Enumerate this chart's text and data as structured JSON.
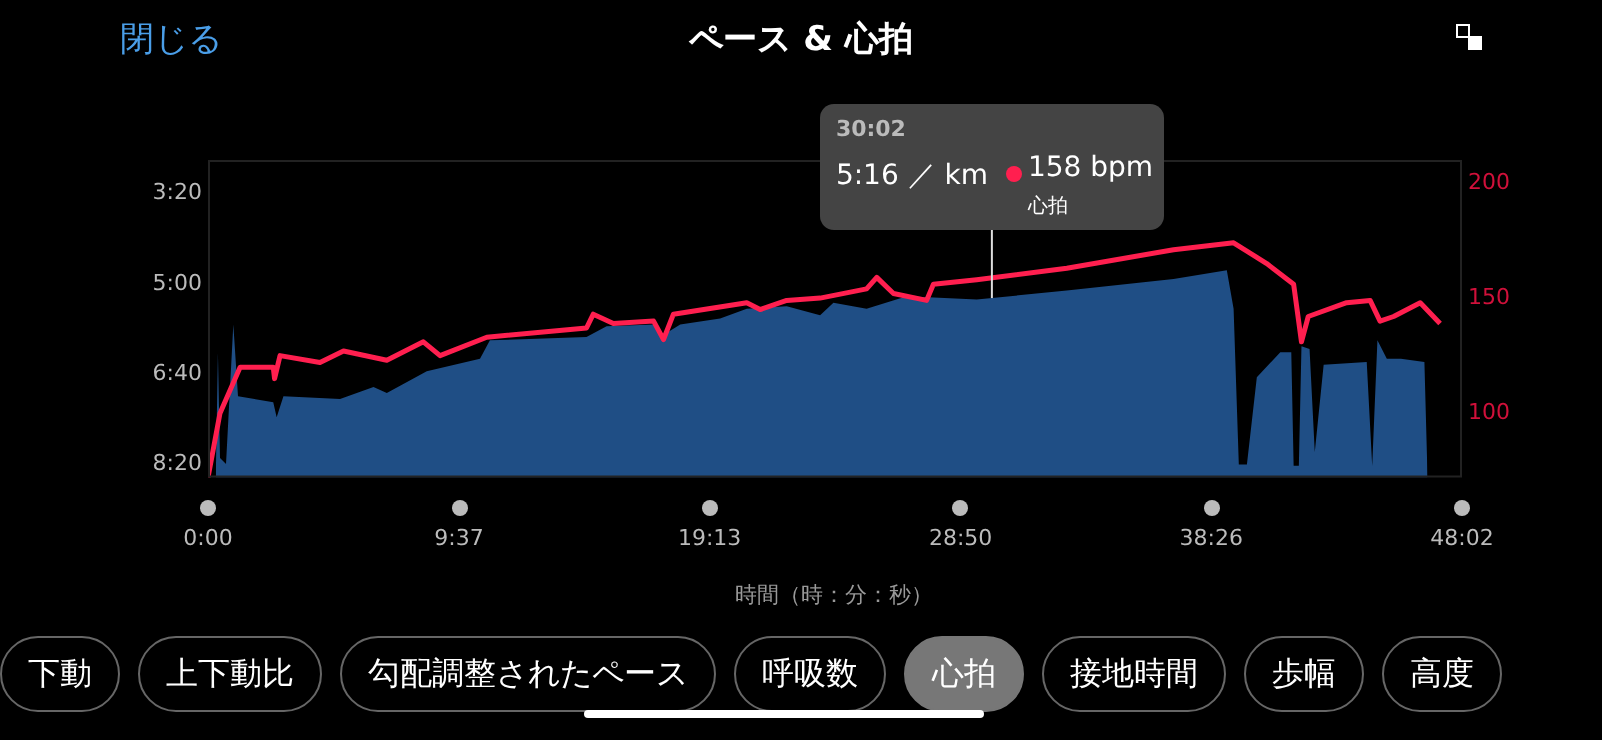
{
  "chart_data": {
    "type": "line",
    "title": "ペース & 心拍",
    "xlabel": "時間（時：分：秒）",
    "xlim": [
      0,
      48.04
    ],
    "xticks": [
      {
        "value": 0,
        "label": "0:00"
      },
      {
        "value": 9.617,
        "label": "9:37"
      },
      {
        "value": 19.217,
        "label": "19:13"
      },
      {
        "value": 28.833,
        "label": "28:50"
      },
      {
        "value": 38.433,
        "label": "38:26"
      },
      {
        "value": 48.04,
        "label": "48:02"
      }
    ],
    "ylim": [
      8.57,
      2.717
    ],
    "yticks": [
      {
        "value": 3.333,
        "label": "3:20"
      },
      {
        "value": 5,
        "label": "5:00"
      },
      {
        "value": 6.667,
        "label": "6:40"
      },
      {
        "value": 8.333,
        "label": "8:20"
      }
    ],
    "y2lim": [
      72,
      210
    ],
    "y2ticks": [
      100,
      150,
      200
    ],
    "series": [
      {
        "type": "area",
        "axis": "y",
        "color": "#1f4e85",
        "x": [
          0.3,
          0.38,
          0.46,
          0.69,
          0.97,
          1.15,
          2.5,
          2.63,
          2.89,
          5.06,
          6.34,
          6.85,
          8.38,
          10.42,
          10.8,
          14.5,
          15.27,
          17.07,
          17.32,
          18.09,
          19.62,
          20.64,
          22.17,
          23.45,
          23.96,
          25.23,
          26.77,
          29.45,
          32.9,
          36.99,
          39.03,
          39.29,
          39.49,
          39.8,
          40.18,
          41.08,
          41.5,
          41.59,
          41.79,
          41.89,
          42.2,
          42.4,
          42.74,
          44.39,
          44.6,
          44.8,
          45.16,
          45.7,
          46.6,
          46.72
        ],
        "values": [
          8.5,
          6.27,
          8.21,
          8.32,
          5.75,
          7.07,
          7.18,
          7.46,
          7.07,
          7.12,
          6.9,
          7.01,
          6.61,
          6.38,
          6.04,
          5.98,
          5.78,
          5.75,
          5.98,
          5.75,
          5.64,
          5.46,
          5.41,
          5.58,
          5.35,
          5.46,
          5.23,
          5.29,
          5.12,
          4.91,
          4.75,
          5.46,
          8.33,
          8.33,
          6.72,
          6.26,
          6.26,
          8.35,
          8.35,
          6.15,
          6.2,
          8.1,
          6.49,
          6.44,
          8.35,
          6.04,
          6.38,
          6.38,
          6.44,
          8.57
        ]
      },
      {
        "type": "line",
        "axis": "y2",
        "color": "#ff1f4f",
        "x": [
          0,
          0.46,
          1.23,
          2.5,
          2.55,
          2.76,
          4.29,
          5.19,
          6.85,
          8.25,
          8.89,
          10.68,
          14.5,
          14.76,
          15.53,
          17.07,
          17.45,
          17.83,
          20.64,
          21.15,
          22.17,
          23.45,
          25.23,
          25.62,
          26.26,
          27.53,
          27.79,
          29.45,
          32.9,
          36.99,
          39.29,
          40.56,
          41.59,
          41.89,
          42.15,
          43.62,
          44.52,
          44.9,
          45.42,
          46.44,
          47.2
        ],
        "values": [
          72,
          100,
          120,
          120,
          115,
          125,
          122,
          127,
          123,
          131,
          125,
          133,
          137,
          143,
          139,
          140,
          132,
          143,
          148,
          145,
          149,
          150,
          154,
          159,
          152,
          149,
          156,
          158,
          163,
          171,
          174,
          165,
          156,
          131,
          142,
          148,
          149,
          140,
          142,
          148,
          139
        ]
      }
    ],
    "ref_lines": [
      {
        "axis": "x",
        "value": 30.03,
        "color": "#dddddd"
      }
    ],
    "annotations": [
      "30:02",
      "5:16 ／ km",
      "158 bpm",
      "心拍",
      "閉じる",
      "下動",
      "上下動比",
      "勾配調整されたペース",
      "呼吸数",
      "心拍",
      "接地時間",
      "歩幅",
      "高度"
    ]
  }
}
